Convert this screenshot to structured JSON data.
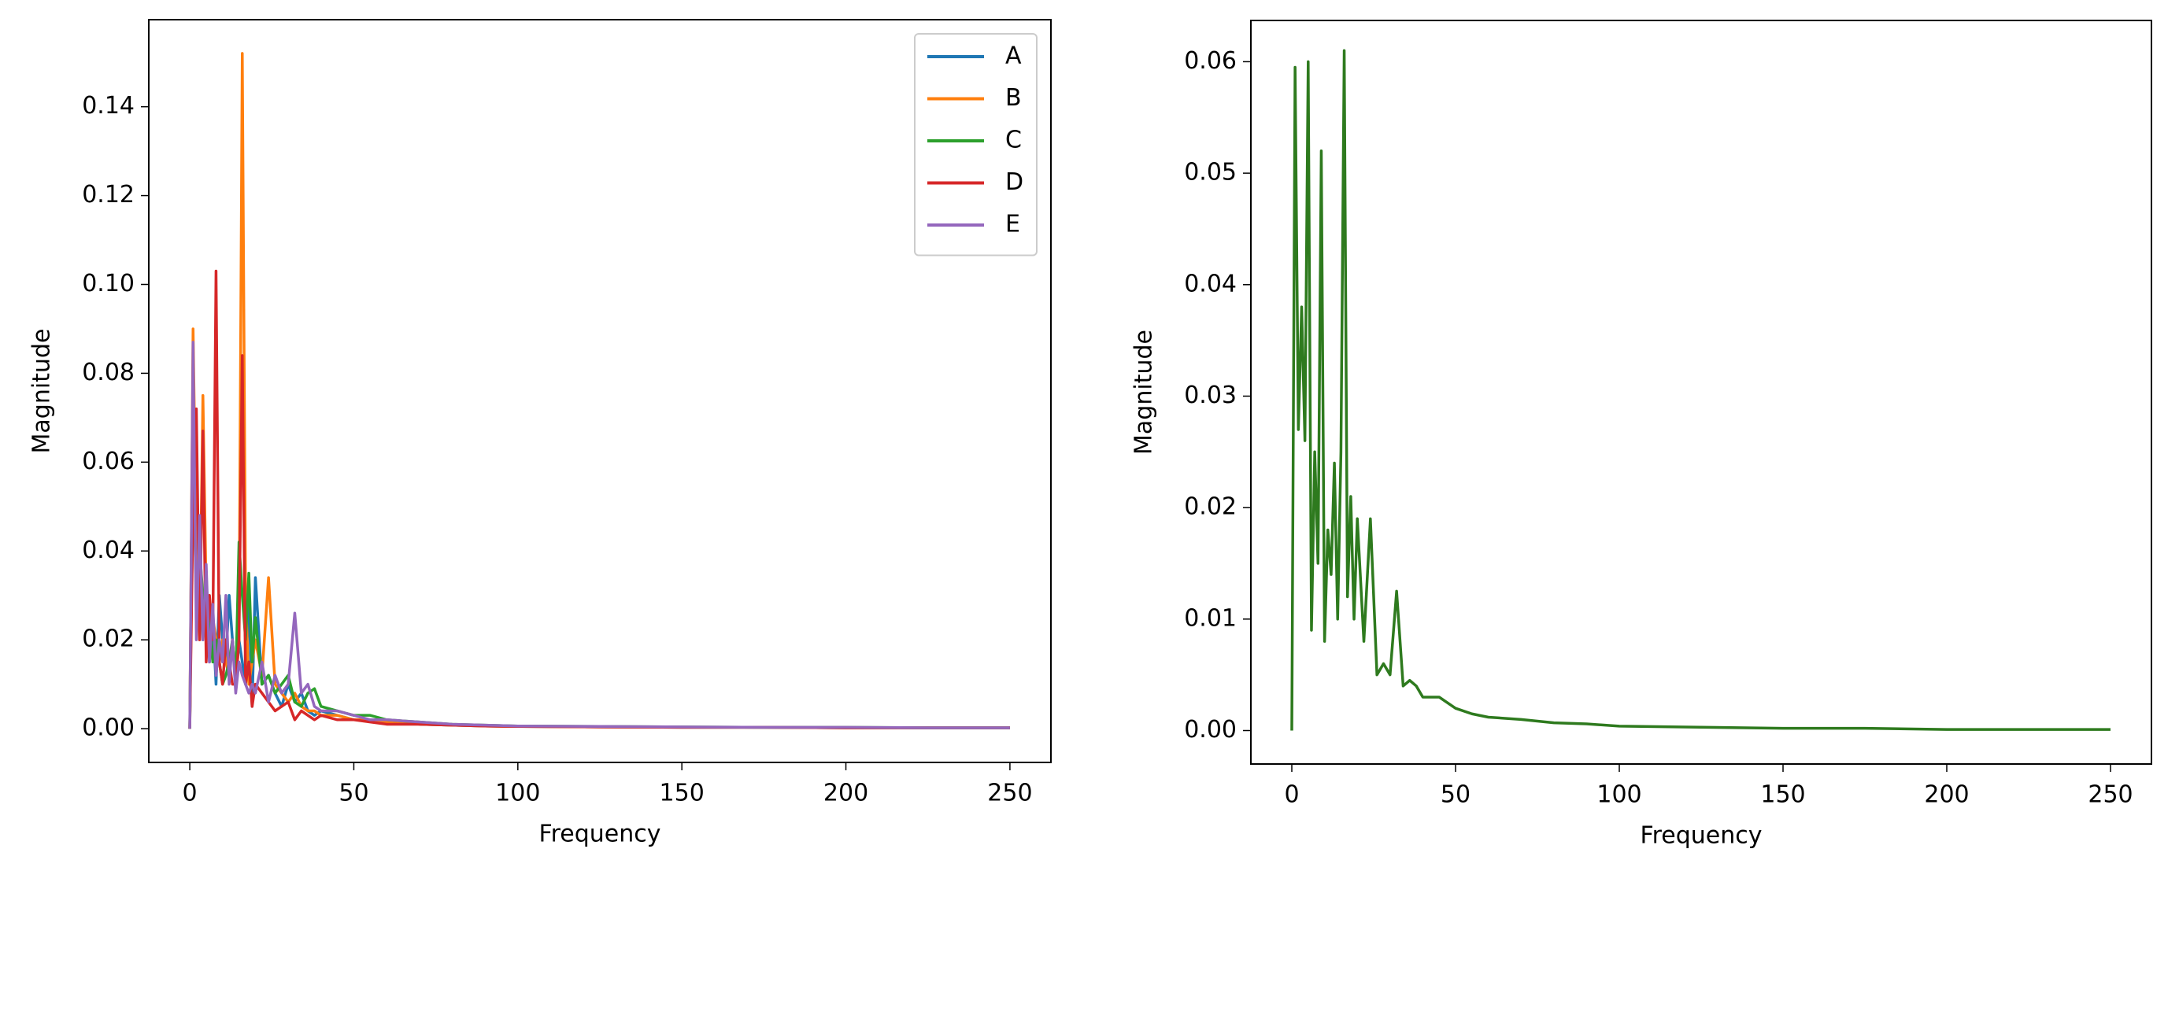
{
  "chart_data": [
    {
      "type": "line",
      "xlabel": "Frequency",
      "ylabel": "Magnitude",
      "legend": "upper right",
      "x": [
        0,
        1,
        2,
        3,
        4,
        5,
        6,
        7,
        8,
        9,
        10,
        11,
        12,
        13,
        14,
        15,
        16,
        17,
        18,
        19,
        20,
        22,
        24,
        26,
        28,
        30,
        32,
        34,
        36,
        38,
        40,
        45,
        50,
        55,
        60,
        70,
        80,
        90,
        100,
        125,
        150,
        175,
        200,
        225,
        250
      ],
      "xlim": [
        -12.5,
        262.5
      ],
      "xticks": [
        0,
        50,
        100,
        150,
        200,
        250
      ],
      "ylim": [
        -0.0076,
        0.1596
      ],
      "yticks": [
        {
          "value": 0,
          "label": "0.00"
        },
        {
          "value": 0.02,
          "label": "0.02"
        },
        {
          "value": 0.04,
          "label": "0.04"
        },
        {
          "value": 0.06,
          "label": "0.06"
        },
        {
          "value": 0.08,
          "label": "0.08"
        },
        {
          "value": 0.1,
          "label": "0.10"
        },
        {
          "value": 0.12,
          "label": "0.12"
        },
        {
          "value": 0.14,
          "label": "0.14"
        }
      ],
      "series": [
        {
          "name": "A",
          "color": "#1f77b4",
          "values": [
            0,
            0.083,
            0.03,
            0.045,
            0.02,
            0.035,
            0.015,
            0.025,
            0.01,
            0.03,
            0.02,
            0.015,
            0.03,
            0.02,
            0.01,
            0.02,
            0.015,
            0.01,
            0.03,
            0.005,
            0.034,
            0.01,
            0.012,
            0.008,
            0.005,
            0.01,
            0.006,
            0.008,
            0.004,
            0.003,
            0.004,
            0.003,
            0.002,
            0.002,
            0.0015,
            0.001,
            0.0008,
            0.0006,
            0.0005,
            0.0004,
            0.0003,
            0.0003,
            0.0002,
            0.0002,
            0.0002
          ]
        },
        {
          "name": "B",
          "color": "#ff7f0e",
          "values": [
            0,
            0.09,
            0.04,
            0.02,
            0.075,
            0.03,
            0.02,
            0.025,
            0.02,
            0.015,
            0.02,
            0.015,
            0.012,
            0.02,
            0.01,
            0.02,
            0.152,
            0.03,
            0.01,
            0.015,
            0.02,
            0.012,
            0.034,
            0.01,
            0.008,
            0.006,
            0.008,
            0.005,
            0.004,
            0.004,
            0.003,
            0.003,
            0.002,
            0.002,
            0.0015,
            0.001,
            0.0008,
            0.0006,
            0.0005,
            0.0004,
            0.0003,
            0.0003,
            0.0002,
            0.0002,
            0.0002
          ]
        },
        {
          "name": "C",
          "color": "#2ca02c",
          "values": [
            0,
            0.06,
            0.03,
            0.04,
            0.03,
            0.02,
            0.025,
            0.015,
            0.02,
            0.015,
            0.01,
            0.012,
            0.015,
            0.02,
            0.01,
            0.042,
            0.03,
            0.02,
            0.035,
            0.015,
            0.025,
            0.01,
            0.012,
            0.008,
            0.01,
            0.012,
            0.006,
            0.005,
            0.008,
            0.009,
            0.005,
            0.004,
            0.003,
            0.003,
            0.002,
            0.0015,
            0.001,
            0.0008,
            0.0006,
            0.0005,
            0.0004,
            0.0003,
            0.0003,
            0.0002,
            0.0002
          ]
        },
        {
          "name": "D",
          "color": "#d62728",
          "values": [
            0,
            0.05,
            0.072,
            0.02,
            0.067,
            0.015,
            0.03,
            0.02,
            0.103,
            0.015,
            0.01,
            0.02,
            0.015,
            0.01,
            0.01,
            0.02,
            0.084,
            0.01,
            0.015,
            0.005,
            0.01,
            0.008,
            0.006,
            0.004,
            0.005,
            0.006,
            0.002,
            0.004,
            0.003,
            0.002,
            0.003,
            0.002,
            0.002,
            0.0015,
            0.001,
            0.001,
            0.0008,
            0.0006,
            0.0005,
            0.0004,
            0.0003,
            0.0003,
            0.0002,
            0.0002,
            0.0002
          ]
        },
        {
          "name": "E",
          "color": "#9467bd",
          "values": [
            0,
            0.087,
            0.02,
            0.048,
            0.02,
            0.037,
            0.015,
            0.028,
            0.012,
            0.02,
            0.015,
            0.03,
            0.01,
            0.02,
            0.008,
            0.015,
            0.012,
            0.01,
            0.008,
            0.01,
            0.008,
            0.015,
            0.006,
            0.012,
            0.008,
            0.01,
            0.026,
            0.008,
            0.01,
            0.005,
            0.004,
            0.004,
            0.003,
            0.002,
            0.002,
            0.0015,
            0.001,
            0.0008,
            0.0006,
            0.0005,
            0.0004,
            0.0003,
            0.0003,
            0.0002,
            0.0002
          ]
        }
      ]
    },
    {
      "type": "line",
      "xlabel": "Frequency",
      "ylabel": "Magnitude",
      "x": [
        0,
        1,
        2,
        3,
        4,
        5,
        6,
        7,
        8,
        9,
        10,
        11,
        12,
        13,
        14,
        15,
        16,
        17,
        18,
        19,
        20,
        22,
        24,
        26,
        28,
        30,
        32,
        34,
        36,
        38,
        40,
        45,
        50,
        55,
        60,
        70,
        80,
        90,
        100,
        125,
        150,
        175,
        200,
        225,
        250
      ],
      "xlim": [
        -12.5,
        262.5
      ],
      "xticks": [
        0,
        50,
        100,
        150,
        200,
        250
      ],
      "ylim": [
        -0.003,
        0.0637
      ],
      "yticks": [
        {
          "value": 0,
          "label": "0.00"
        },
        {
          "value": 0.01,
          "label": "0.01"
        },
        {
          "value": 0.02,
          "label": "0.02"
        },
        {
          "value": 0.03,
          "label": "0.03"
        },
        {
          "value": 0.04,
          "label": "0.04"
        },
        {
          "value": 0.05,
          "label": "0.05"
        },
        {
          "value": 0.06,
          "label": "0.06"
        }
      ],
      "series": [
        {
          "color": "#2e7a1e",
          "values": [
            0,
            0.0595,
            0.027,
            0.038,
            0.026,
            0.06,
            0.009,
            0.025,
            0.015,
            0.052,
            0.008,
            0.018,
            0.014,
            0.024,
            0.01,
            0.025,
            0.061,
            0.012,
            0.021,
            0.01,
            0.019,
            0.008,
            0.019,
            0.005,
            0.006,
            0.005,
            0.0125,
            0.004,
            0.0045,
            0.004,
            0.003,
            0.003,
            0.002,
            0.0015,
            0.0012,
            0.001,
            0.0007,
            0.0006,
            0.0004,
            0.0003,
            0.0002,
            0.0002,
            0.0001,
            0.0001,
            0.0001
          ]
        }
      ]
    }
  ]
}
